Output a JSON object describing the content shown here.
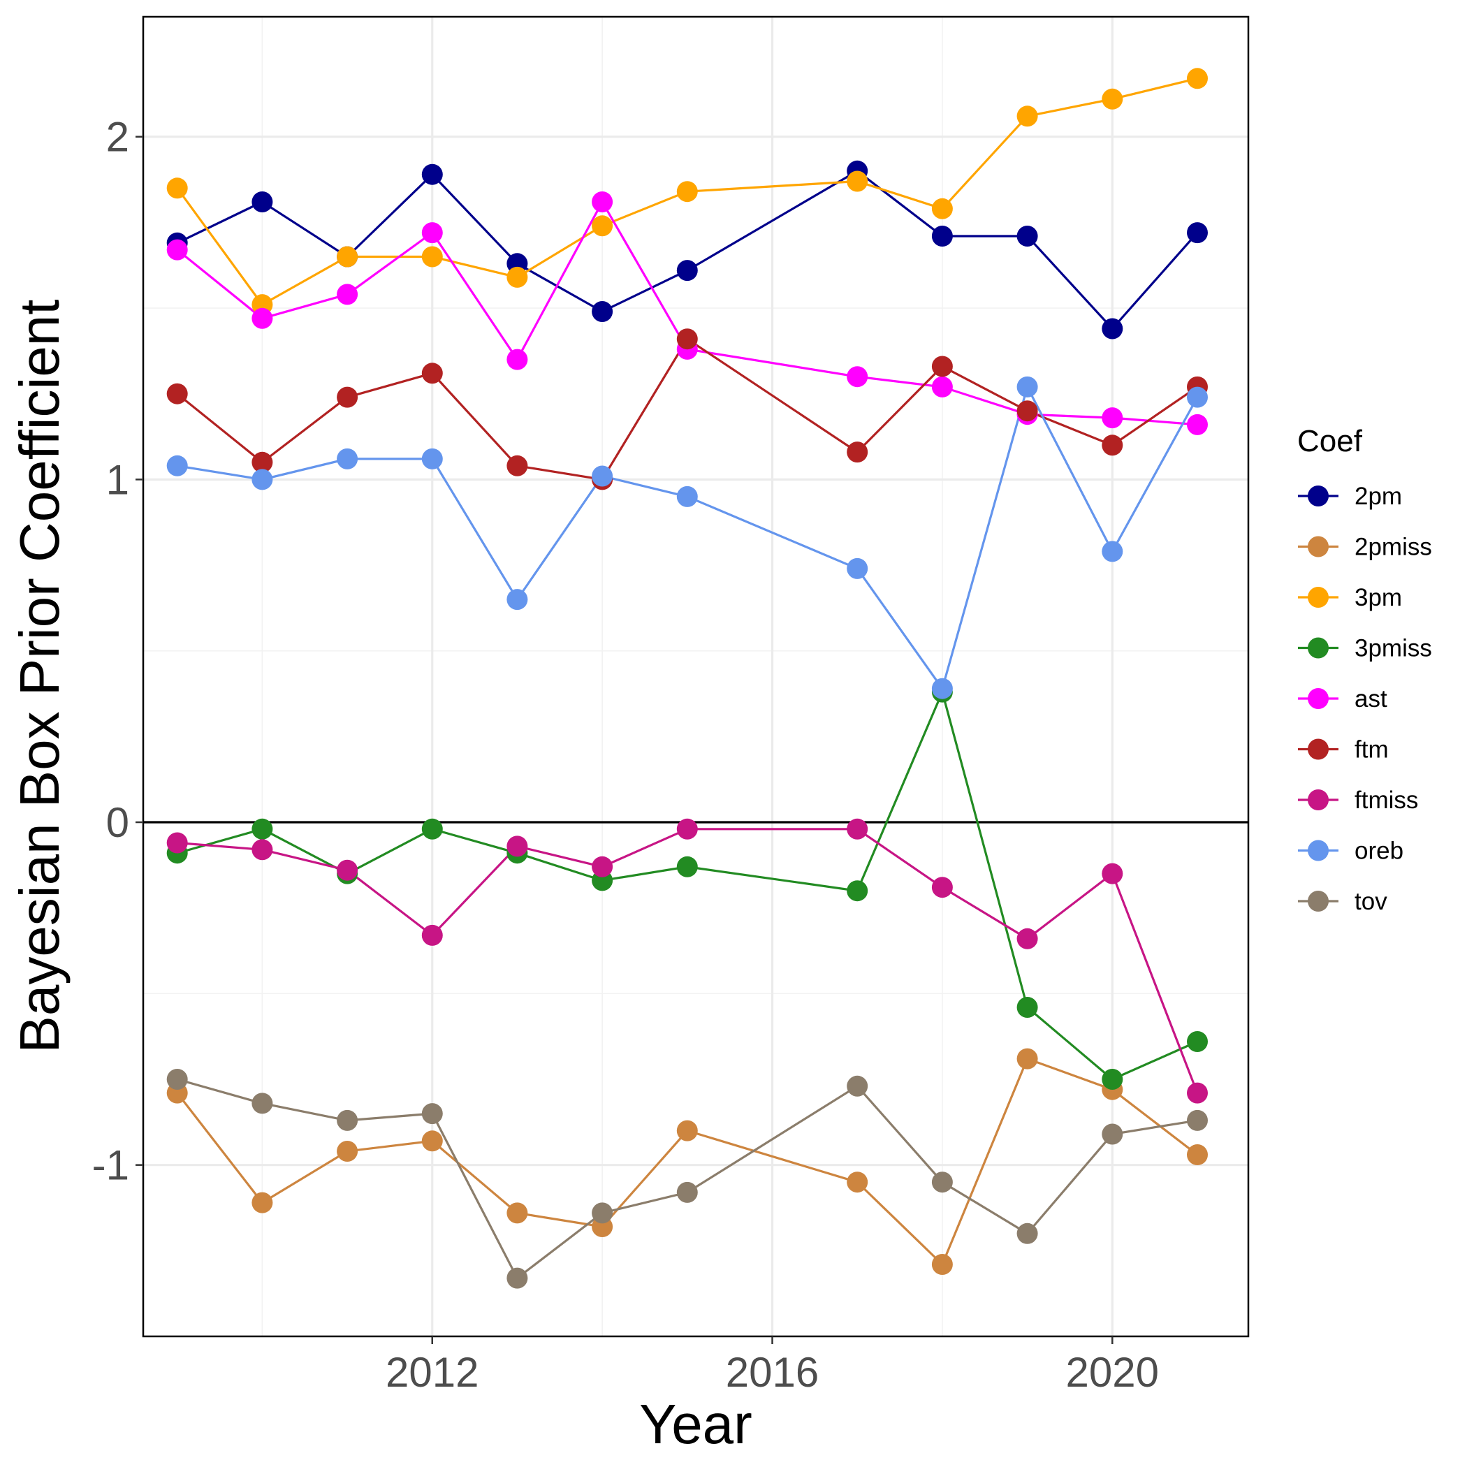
{
  "chart_data": {
    "type": "line",
    "xlabel": "Year",
    "ylabel": "Bayesian Box Prior Coefficient",
    "xlim": [
      2008.6,
      2021.6
    ],
    "ylim": [
      -1.5,
      2.35
    ],
    "xticks": [
      2012,
      2016,
      2020
    ],
    "yticks": [
      -1,
      0,
      1,
      2
    ],
    "x_minor_gridlines": [
      2010,
      2014,
      2018
    ],
    "y_minor_gridlines": [
      -0.5,
      0.5,
      1.5
    ],
    "grid": true,
    "reference_hline": 0,
    "legend": {
      "title": "Coef",
      "placement": "right"
    },
    "x": [
      2009,
      2010,
      2011,
      2012,
      2013,
      2014,
      2015,
      2017,
      2018,
      2019,
      2020,
      2021
    ],
    "series": [
      {
        "name": "2pm",
        "color": "#00008B",
        "values": [
          1.69,
          1.81,
          1.65,
          1.89,
          1.63,
          1.49,
          1.61,
          1.9,
          1.71,
          1.71,
          1.44,
          1.72
        ]
      },
      {
        "name": "2pmiss",
        "color": "#CD853F",
        "values": [
          -0.79,
          -1.11,
          -0.96,
          -0.93,
          -1.14,
          -1.18,
          -0.9,
          -1.05,
          -1.29,
          -0.69,
          -0.78,
          -0.97
        ]
      },
      {
        "name": "3pm",
        "color": "#FFA500",
        "values": [
          1.85,
          1.51,
          1.65,
          1.65,
          1.59,
          1.74,
          1.84,
          1.87,
          1.79,
          2.06,
          2.11,
          2.17
        ]
      },
      {
        "name": "3pmiss",
        "color": "#228B22",
        "values": [
          -0.09,
          -0.02,
          -0.15,
          -0.02,
          -0.09,
          -0.17,
          -0.13,
          -0.2,
          0.38,
          -0.54,
          -0.75,
          -0.64
        ]
      },
      {
        "name": "ast",
        "color": "#FF00FF",
        "values": [
          1.67,
          1.47,
          1.54,
          1.72,
          1.35,
          1.81,
          1.38,
          1.3,
          1.27,
          1.19,
          1.18,
          1.16
        ]
      },
      {
        "name": "ftm",
        "color": "#B22222",
        "values": [
          1.25,
          1.05,
          1.24,
          1.31,
          1.04,
          1.0,
          1.41,
          1.08,
          1.33,
          1.2,
          1.1,
          1.27
        ]
      },
      {
        "name": "ftmiss",
        "color": "#C71585",
        "values": [
          -0.06,
          -0.08,
          -0.14,
          -0.33,
          -0.07,
          -0.13,
          -0.02,
          -0.02,
          -0.19,
          -0.34,
          -0.15,
          -0.79
        ]
      },
      {
        "name": "oreb",
        "color": "#6495ED",
        "values": [
          1.04,
          1.0,
          1.06,
          1.06,
          0.65,
          1.01,
          0.95,
          0.74,
          0.39,
          1.27,
          0.79,
          1.24
        ]
      },
      {
        "name": "tov",
        "color": "#8B7D6B",
        "values": [
          -0.75,
          -0.82,
          -0.87,
          -0.85,
          -1.33,
          -1.14,
          -1.08,
          -0.77,
          -1.05,
          -1.2,
          -0.91,
          -0.87
        ]
      }
    ]
  }
}
